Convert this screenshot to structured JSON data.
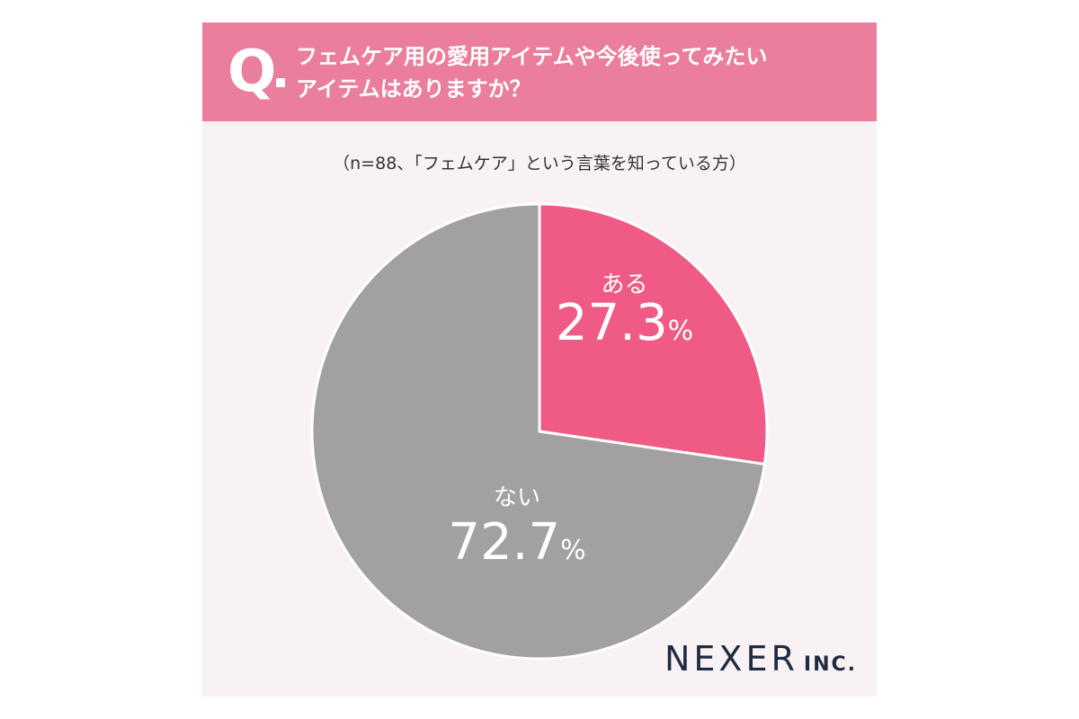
{
  "header": {
    "q_mark": "Q",
    "question_lines": [
      "フェムケア用の愛用アイテムや今後使ってみたい",
      "アイテムはありますか？"
    ]
  },
  "sample_note": "（n=88、「フェムケア」という言葉を知っている方）",
  "chart_data": {
    "type": "pie",
    "start_angle_deg": 0,
    "direction": "clockwise",
    "slices": [
      {
        "label": "ある",
        "value": 27.3,
        "display": "27.3",
        "unit": "%",
        "color": "#ef5b84"
      },
      {
        "label": "ない",
        "value": 72.7,
        "display": "72.7",
        "unit": "%",
        "color": "#a2a0a1"
      }
    ]
  },
  "logo": {
    "main": "NEXER",
    "sub": "INC."
  },
  "colors": {
    "header_bg": "#ea7e9c",
    "card_bg": "#f9f2f4",
    "logo": "#1f2a44"
  }
}
